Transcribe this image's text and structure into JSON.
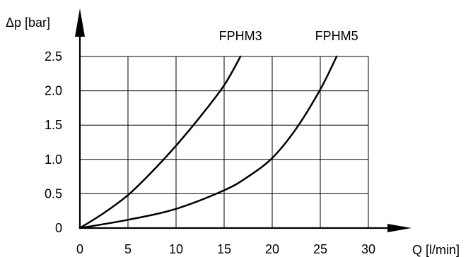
{
  "chart_data": {
    "type": "line",
    "title": "",
    "xlabel": "Q [l/min]",
    "ylabel": "Δp [bar]",
    "xlim": [
      0,
      30
    ],
    "ylim": [
      0,
      2.5
    ],
    "grid": true,
    "x_ticks": [
      0,
      5,
      10,
      15,
      20,
      25,
      30
    ],
    "y_ticks": [
      0,
      0.5,
      1.0,
      1.5,
      2.0,
      2.5
    ],
    "x_tick_labels": [
      "0",
      "5",
      "10",
      "15",
      "20",
      "25",
      "30"
    ],
    "y_tick_labels": [
      "0",
      "0.5",
      "1.0",
      "1.5",
      "2.0",
      "2.5"
    ],
    "series": [
      {
        "name": "FPHM3",
        "x": [
          0,
          2.5,
          5,
          7.5,
          10,
          12.5,
          15,
          16.7
        ],
        "y": [
          0,
          0.22,
          0.48,
          0.82,
          1.2,
          1.62,
          2.08,
          2.5
        ]
      },
      {
        "name": "FPHM5",
        "x": [
          0,
          5,
          10,
          15,
          17.5,
          20,
          22.5,
          25,
          26.7
        ],
        "y": [
          0,
          0.12,
          0.28,
          0.55,
          0.75,
          1.02,
          1.45,
          2.02,
          2.5
        ]
      }
    ]
  }
}
